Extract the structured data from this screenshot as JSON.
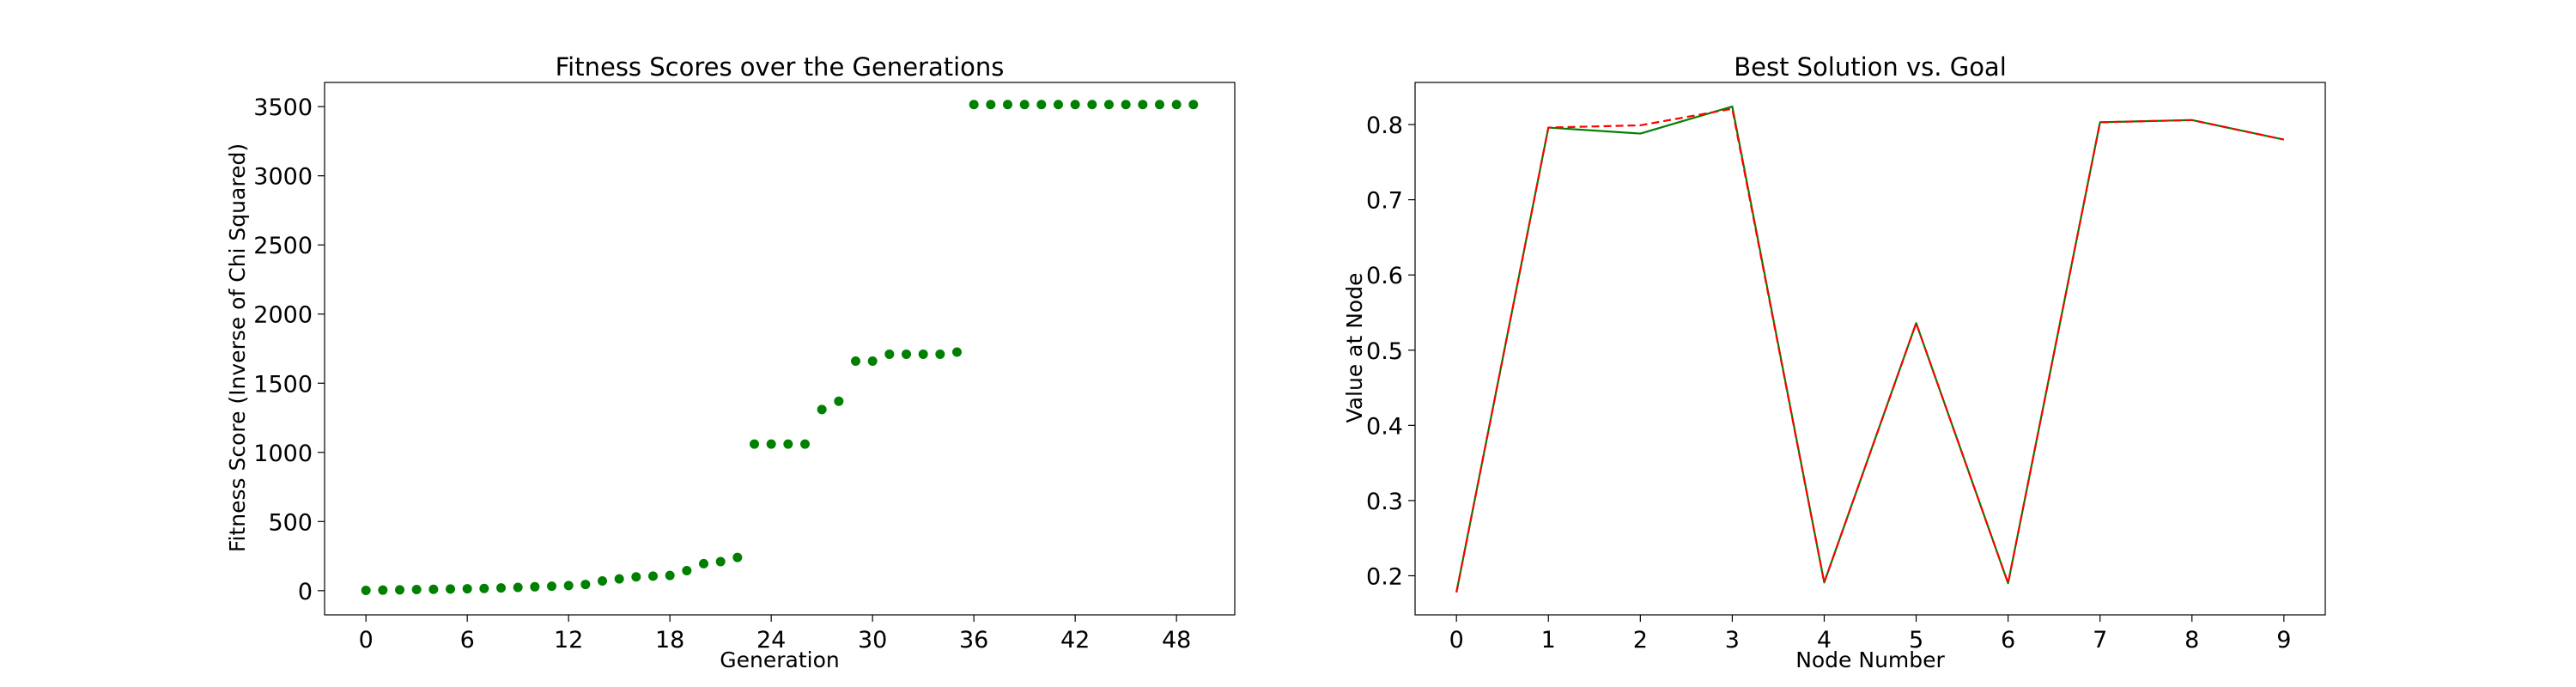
{
  "chart_data": [
    {
      "type": "scatter",
      "title": "Fitness Scores over the Generations",
      "xlabel": "Generation",
      "ylabel": "Fitness Score (Inverse of Chi Squared)",
      "xlim": [
        -2.45,
        51.45
      ],
      "ylim": [
        -175,
        3675
      ],
      "xticks": [
        0,
        6,
        12,
        18,
        24,
        30,
        36,
        42,
        48
      ],
      "yticks": [
        0,
        500,
        1000,
        1500,
        2000,
        2500,
        3000,
        3500
      ],
      "grid": false,
      "series": [
        {
          "color": "#008000",
          "marker": "circle",
          "x": [
            0,
            1,
            2,
            3,
            4,
            5,
            6,
            7,
            8,
            9,
            10,
            11,
            12,
            13,
            14,
            15,
            16,
            17,
            18,
            19,
            20,
            21,
            22,
            23,
            24,
            25,
            26,
            27,
            28,
            29,
            30,
            31,
            32,
            33,
            34,
            35,
            36,
            37,
            38,
            39,
            40,
            41,
            42,
            43,
            44,
            45,
            46,
            47,
            48,
            49
          ],
          "y": [
            2,
            4,
            6,
            8,
            10,
            12,
            14,
            16,
            20,
            24,
            28,
            32,
            37,
            45,
            70,
            85,
            100,
            105,
            110,
            145,
            195,
            210,
            240,
            1060,
            1060,
            1060,
            1060,
            1310,
            1370,
            1660,
            1660,
            1710,
            1710,
            1710,
            1710,
            1725,
            3515,
            3515,
            3515,
            3515,
            3515,
            3515,
            3515,
            3515,
            3515,
            3515,
            3515,
            3515,
            3515,
            3515
          ]
        }
      ]
    },
    {
      "type": "line",
      "title": "Best Solution vs. Goal",
      "xlabel": "Node Number",
      "ylabel": "Value at Node",
      "xlim": [
        -0.45,
        9.45
      ],
      "ylim": [
        0.148,
        0.856
      ],
      "xticks": [
        0,
        1,
        2,
        3,
        4,
        5,
        6,
        7,
        8,
        9
      ],
      "yticks": [
        0.2,
        0.3,
        0.4,
        0.5,
        0.6,
        0.7,
        0.8
      ],
      "grid": false,
      "x": [
        0,
        1,
        2,
        3,
        4,
        5,
        6,
        7,
        8,
        9
      ],
      "series": [
        {
          "color": "#008000",
          "linestyle": "solid",
          "values": [
            0.178,
            0.796,
            0.788,
            0.824,
            0.191,
            0.536,
            0.19,
            0.803,
            0.806,
            0.78
          ]
        },
        {
          "color": "#ff0000",
          "linestyle": "dashed",
          "values": [
            0.178,
            0.796,
            0.799,
            0.821,
            0.191,
            0.536,
            0.19,
            0.803,
            0.806,
            0.78
          ]
        }
      ]
    }
  ]
}
